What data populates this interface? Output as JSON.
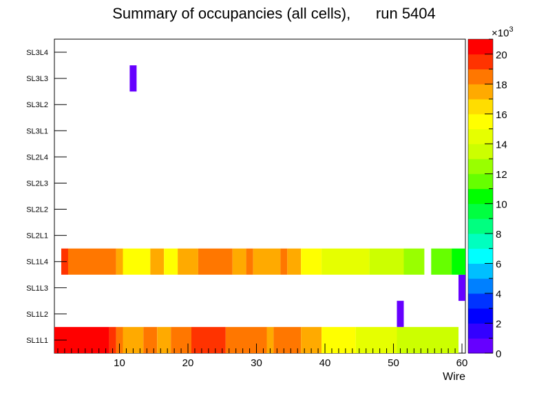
{
  "chart_data": {
    "type": "heatmap",
    "title": "Summary of occupancies (all cells),      run 5404",
    "xlabel": "Wire",
    "ylabel": "",
    "xlim": [
      0.5,
      60.5
    ],
    "x_ticks": [
      10,
      20,
      30,
      40,
      50,
      60
    ],
    "y_categories": [
      "SL1L1",
      "SL1L2",
      "SL1L3",
      "SL1L4",
      "SL2L1",
      "SL2L2",
      "SL2L3",
      "SL2L4",
      "SL3L1",
      "SL3L2",
      "SL3L3",
      "SL3L4"
    ],
    "colorbar": {
      "min": 0,
      "max": 21,
      "ticks": [
        0,
        2,
        4,
        6,
        8,
        10,
        12,
        14,
        16,
        18,
        20
      ],
      "multiplier_label": "×10",
      "multiplier_exponent": "3",
      "palette": [
        "#6600ff",
        "#3300ff",
        "#0000ff",
        "#0033ff",
        "#0080ff",
        "#00bfff",
        "#00ffff",
        "#00ffbf",
        "#00ff80",
        "#00ff40",
        "#00ff00",
        "#66ff00",
        "#99ff00",
        "#ccff00",
        "#e6ff00",
        "#ffff00",
        "#ffdd00",
        "#ffaa00",
        "#ff7700",
        "#ff3300",
        "#ff0000"
      ]
    },
    "series": [
      {
        "name": "SL1L1",
        "cells": [
          {
            "from": 1,
            "to": 8,
            "value": 20.6
          },
          {
            "from": 9,
            "to": 9,
            "value": 19.5
          },
          {
            "from": 10,
            "to": 10,
            "value": 18.5
          },
          {
            "from": 11,
            "to": 13,
            "value": 17.5
          },
          {
            "from": 14,
            "to": 15,
            "value": 18.5
          },
          {
            "from": 16,
            "to": 17,
            "value": 17.5
          },
          {
            "from": 18,
            "to": 20,
            "value": 18.5
          },
          {
            "from": 21,
            "to": 25,
            "value": 19.5
          },
          {
            "from": 26,
            "to": 31,
            "value": 18.5
          },
          {
            "from": 32,
            "to": 32,
            "value": 17.5
          },
          {
            "from": 33,
            "to": 36,
            "value": 18.5
          },
          {
            "from": 37,
            "to": 39,
            "value": 17.5
          },
          {
            "from": 40,
            "to": 44,
            "value": 15.7
          },
          {
            "from": 45,
            "to": 50,
            "value": 14.6
          },
          {
            "from": 51,
            "to": 59,
            "value": 13.6
          }
        ]
      },
      {
        "name": "SL1L2",
        "cells": [
          {
            "from": 51,
            "to": 51,
            "value": 0.5
          }
        ]
      },
      {
        "name": "SL1L3",
        "cells": [
          {
            "from": 60,
            "to": 60,
            "value": 0.5
          }
        ]
      },
      {
        "name": "SL1L4",
        "cells": [
          {
            "from": 2,
            "to": 2,
            "value": 19.5
          },
          {
            "from": 3,
            "to": 9,
            "value": 18.5
          },
          {
            "from": 10,
            "to": 10,
            "value": 17.5
          },
          {
            "from": 11,
            "to": 14,
            "value": 15.7
          },
          {
            "from": 15,
            "to": 16,
            "value": 17.5
          },
          {
            "from": 17,
            "to": 18,
            "value": 15.7
          },
          {
            "from": 19,
            "to": 21,
            "value": 17.5
          },
          {
            "from": 22,
            "to": 26,
            "value": 18.5
          },
          {
            "from": 27,
            "to": 28,
            "value": 17.5
          },
          {
            "from": 29,
            "to": 29,
            "value": 18.5
          },
          {
            "from": 30,
            "to": 33,
            "value": 17.5
          },
          {
            "from": 34,
            "to": 34,
            "value": 18.5
          },
          {
            "from": 35,
            "to": 36,
            "value": 17.5
          },
          {
            "from": 37,
            "to": 39,
            "value": 15.7
          },
          {
            "from": 40,
            "to": 46,
            "value": 14.6
          },
          {
            "from": 47,
            "to": 51,
            "value": 13.6
          },
          {
            "from": 52,
            "to": 54,
            "value": 12.6
          },
          {
            "from": 56,
            "to": 58,
            "value": 11.5
          },
          {
            "from": 59,
            "to": 60,
            "value": 10.5
          }
        ]
      },
      {
        "name": "SL3L3",
        "cells": [
          {
            "from": 12,
            "to": 12,
            "value": 0.5
          }
        ]
      }
    ]
  }
}
